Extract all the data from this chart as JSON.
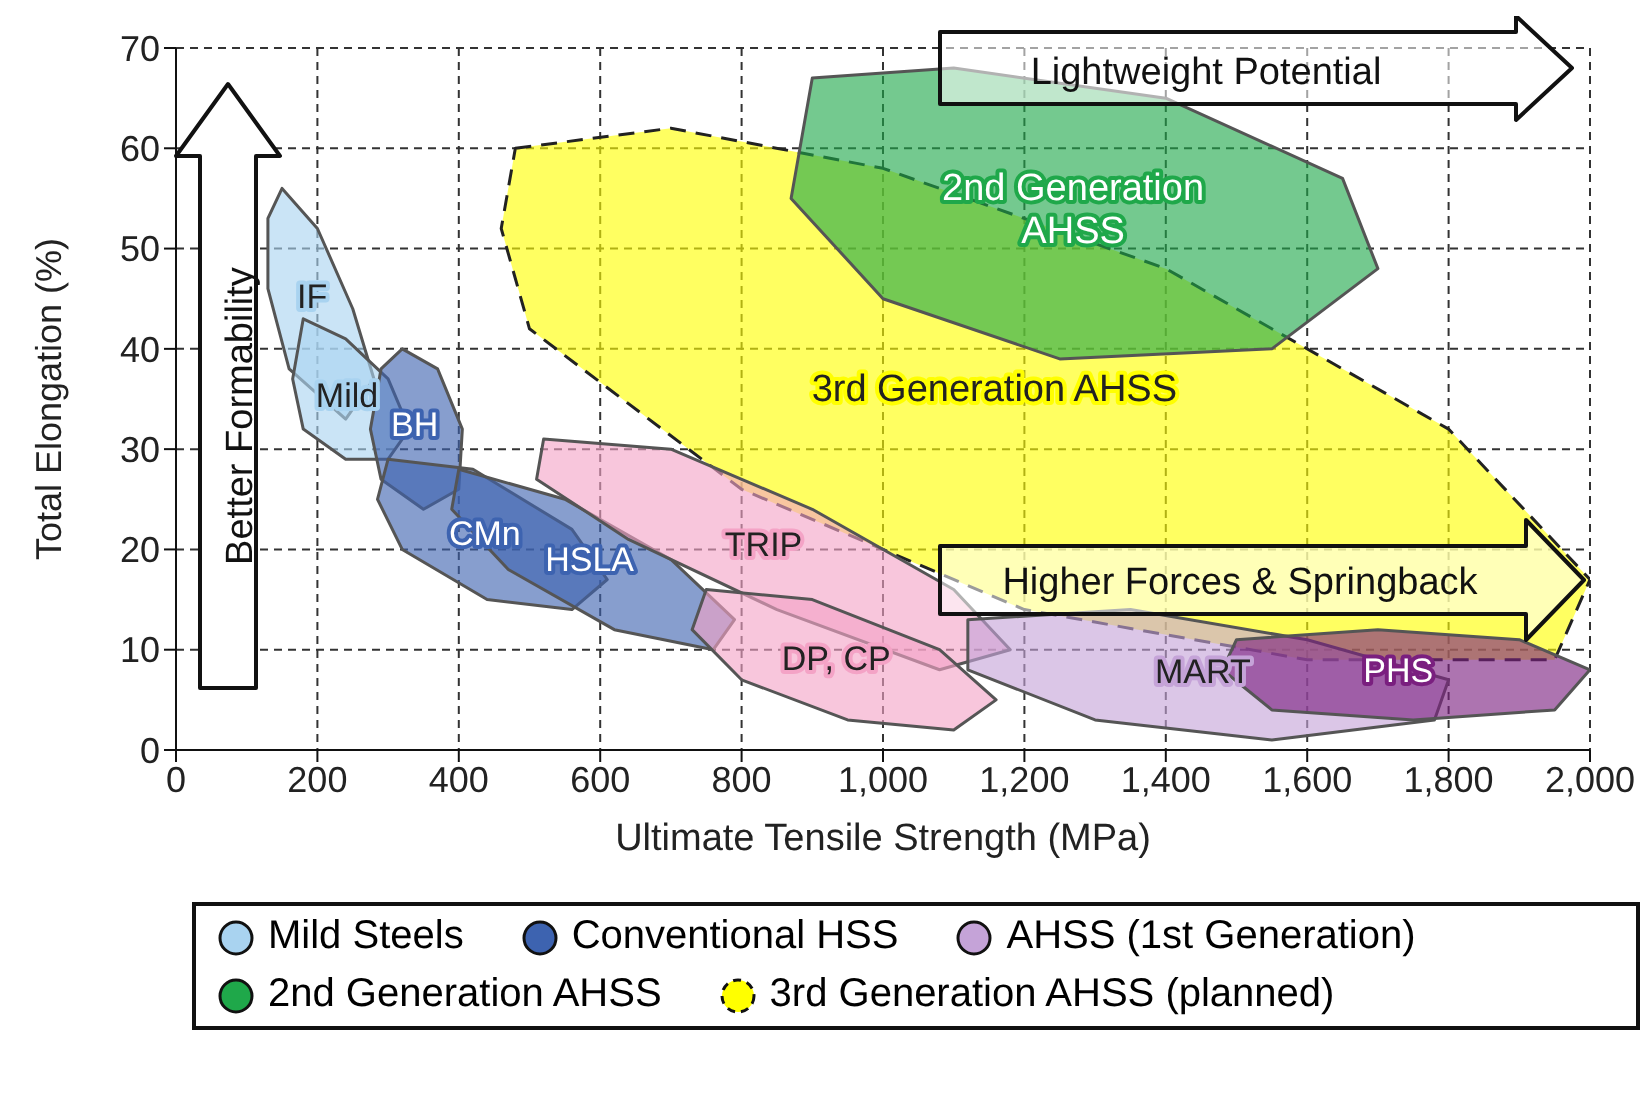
{
  "chart_data": {
    "type": "area",
    "xlabel": "Ultimate Tensile Strength (MPa)",
    "ylabel": "Total Elongation (%)",
    "xlim": [
      0,
      2000
    ],
    "xticks": [
      0,
      200,
      400,
      600,
      800,
      {
        "value": 1000,
        "label": "1,000"
      },
      {
        "value": 1200,
        "label": "1,200"
      },
      {
        "value": 1400,
        "label": "1,400"
      },
      {
        "value": 1600,
        "label": "1,600"
      },
      {
        "value": 1800,
        "label": "1,800"
      },
      {
        "value": 2000,
        "label": "2,000"
      }
    ],
    "ylim": [
      0,
      70
    ],
    "yticks": [
      0,
      10,
      20,
      30,
      40,
      50,
      60,
      70
    ],
    "grid": true,
    "marker": "none",
    "legend": "bottom",
    "series": [
      {
        "name": "3rd Generation AHSS",
        "color": "#ffff00",
        "line_style": "dashed",
        "x": [
          480,
          700,
          1000,
          1400,
          1800,
          2000,
          1950,
          1600,
          1200,
          800,
          500,
          460
        ],
        "values": [
          60,
          62,
          58,
          48,
          32,
          17,
          9,
          9,
          14,
          26,
          42,
          52
        ]
      },
      {
        "name": "2nd Generation AHSS",
        "color": "#1fa84a",
        "x": [
          900,
          1100,
          1400,
          1650,
          1700,
          1550,
          1250,
          1000,
          870
        ],
        "values": [
          67,
          68,
          65,
          57,
          48,
          40,
          39,
          45,
          55
        ]
      },
      {
        "name": "IF",
        "color": "#a9d3f0",
        "x": [
          150,
          200,
          250,
          280,
          240,
          160,
          130,
          130
        ],
        "values": [
          56,
          52,
          44,
          37,
          33,
          38,
          46,
          53
        ]
      },
      {
        "name": "Mild",
        "color": "#a9d3f0",
        "x": [
          180,
          240,
          300,
          330,
          300,
          240,
          180,
          165
        ],
        "values": [
          43,
          41,
          37,
          32,
          29,
          29,
          32,
          37
        ]
      },
      {
        "name": "BH",
        "color": "#3d63b0",
        "x": [
          320,
          370,
          405,
          400,
          350,
          290,
          275,
          290
        ],
        "values": [
          40,
          38,
          32,
          26,
          24,
          27,
          32,
          38
        ]
      },
      {
        "name": "CMn",
        "color": "#3d63b0",
        "x": [
          300,
          420,
          560,
          610,
          560,
          440,
          320,
          285
        ],
        "values": [
          29,
          28,
          22,
          17,
          14,
          15,
          20,
          25
        ]
      },
      {
        "name": "HSLA",
        "color": "#3d63b0",
        "x": [
          400,
          550,
          700,
          790,
          760,
          620,
          470,
          390
        ],
        "values": [
          28,
          25,
          19,
          13,
          10,
          12,
          18,
          24
        ]
      },
      {
        "name": "TRIP",
        "color": "#f4a3c6",
        "x": [
          520,
          700,
          900,
          1100,
          1180,
          1080,
          850,
          640,
          510
        ],
        "values": [
          31,
          30,
          24,
          16,
          10,
          8,
          14,
          21,
          27
        ]
      },
      {
        "name": "DP, CP",
        "color": "#f4a3c6",
        "x": [
          750,
          900,
          1080,
          1160,
          1100,
          950,
          800,
          730
        ],
        "values": [
          16,
          15,
          10,
          5,
          2,
          3,
          7,
          12
        ]
      },
      {
        "name": "MART",
        "color": "#c5a3d8",
        "x": [
          1120,
          1350,
          1600,
          1800,
          1780,
          1550,
          1300,
          1120
        ],
        "values": [
          13,
          14,
          11,
          7,
          3,
          1,
          3,
          8
        ]
      },
      {
        "name": "PHS",
        "color": "#7a1f7f",
        "x": [
          1500,
          1700,
          1900,
          2000,
          1950,
          1750,
          1550,
          1480
        ],
        "values": [
          11,
          12,
          11,
          8,
          4,
          3,
          4,
          8
        ]
      }
    ],
    "annotations": [
      "Lightweight Potential",
      "Higher Forces & Springback",
      "Better Formability",
      "Mild Steels",
      "Conventional HSS",
      "AHSS (1st Generation)",
      "2nd Generation AHSS",
      "3rd Generation AHSS (planned)"
    ]
  }
}
